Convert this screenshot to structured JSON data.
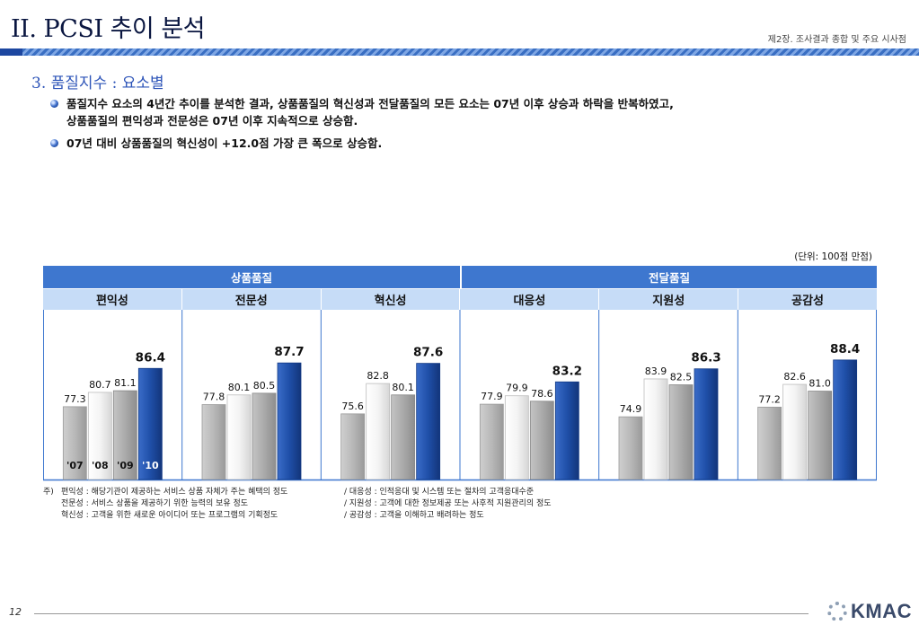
{
  "header": {
    "title": "II. PCSI 추이 분석",
    "chapter": "제2장. 조사결과 종합 및 주요 시사점"
  },
  "section": {
    "title": "3. 품질지수 : 요소별"
  },
  "bullets": [
    {
      "line1": "품질지수 요소의 4년간 추이를 분석한 결과, 상품품질의 혁신성과 전달품질의 모든 요소는 07년 이후 상승과 하락을 반복하였고,",
      "line2": "상품품질의 편익성과 전문성은 07년 이후 지속적으로 상승함."
    },
    {
      "line1": "07년 대비 상품품질의 혁신성이 +12.0점 가장 큰 폭으로 상승함.",
      "line2": ""
    }
  ],
  "unit_note": "(단위: 100점 만점)",
  "chart_data": {
    "type": "bar",
    "groups": [
      {
        "name": "상품품질",
        "categories": [
          "편익성",
          "전문성",
          "혁신성"
        ]
      },
      {
        "name": "전달품질",
        "categories": [
          "대응성",
          "지원성",
          "공감성"
        ]
      }
    ],
    "categories": [
      "편익성",
      "전문성",
      "혁신성",
      "대응성",
      "지원성",
      "공감성"
    ],
    "series_labels": [
      "'07",
      "'08",
      "'09",
      "'10"
    ],
    "values": [
      [
        77.3,
        80.7,
        81.1,
        86.4
      ],
      [
        77.8,
        80.1,
        80.5,
        87.7
      ],
      [
        75.6,
        82.8,
        80.1,
        87.6
      ],
      [
        77.9,
        79.9,
        78.6,
        83.2
      ],
      [
        74.9,
        83.9,
        82.5,
        86.3
      ],
      [
        77.2,
        82.6,
        81.0,
        88.4
      ]
    ],
    "colors": {
      "y07": "#b4b4b4",
      "y08": "#f2f2f2",
      "y09": "#a9a9a9",
      "y10": "#1f4fa8",
      "header": "#3e77cf",
      "subheader": "#c6dcf7",
      "divider": "#3e77cf"
    },
    "ylim": [
      60,
      92
    ],
    "grid": false,
    "legend": "inside-first-category"
  },
  "footnote": {
    "prefix": "주)",
    "rows": [
      [
        "편익성 : 해당기관이 제공하는 서비스 상품 자체가 주는 혜택의 정도",
        "/ 대응성 : 인적응대 및 시스템 또는 절차의 고객응대수준"
      ],
      [
        "전문성 : 서비스 상품을 제공하기 위한 능력의 보유 정도",
        "/ 지원성 : 고객에 대한 정보제공 또는 사후적 지원관리의 정도"
      ],
      [
        "혁신성 : 고객을 위한 새로운 아이디어 또는 프로그램의 기획정도",
        "/ 공감성 : 고객을 이해하고 배려하는 정도"
      ]
    ]
  },
  "footer": {
    "page_number": "12",
    "logo_text": "KMAC"
  }
}
